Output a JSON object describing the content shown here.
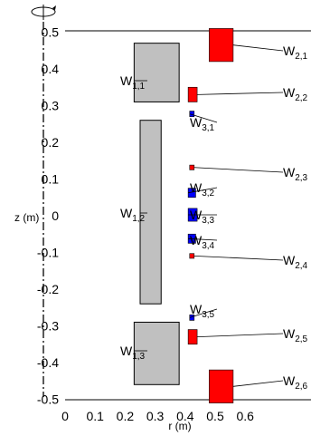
{
  "axes": {
    "x_label": "r (m)",
    "y_label": "z (m)",
    "x_ticks": [
      {
        "value": 0,
        "label": "0"
      },
      {
        "value": 0.1,
        "label": "0.1"
      },
      {
        "value": 0.2,
        "label": "0.2"
      },
      {
        "value": 0.3,
        "label": "0.3"
      },
      {
        "value": 0.4,
        "label": "0.4"
      },
      {
        "value": 0.5,
        "label": "0.5"
      },
      {
        "value": 0.6,
        "label": "0.6"
      }
    ],
    "y_ticks": [
      {
        "value": 0.5,
        "label": "0.5"
      },
      {
        "value": 0.4,
        "label": "0.4"
      },
      {
        "value": 0.3,
        "label": "0.3"
      },
      {
        "value": 0.2,
        "label": "0.2"
      },
      {
        "value": 0.1,
        "label": "0.1"
      },
      {
        "value": 0,
        "label": "0"
      },
      {
        "value": -0.1,
        "label": "-0.1"
      },
      {
        "value": -0.2,
        "label": "-0.2"
      },
      {
        "value": -0.3,
        "label": "-0.3"
      },
      {
        "value": -0.4,
        "label": "-0.4"
      },
      {
        "value": -0.5,
        "label": "-0.5"
      }
    ],
    "x_range": [
      0,
      0.63
    ],
    "y_range": [
      -0.5,
      0.52
    ]
  },
  "colors": {
    "gray_coil": "#c0c0c0",
    "red_coil": "#ff0000",
    "blue_coil": "#0000ff",
    "outline": "#000000"
  },
  "coils": [
    {
      "id": "w11",
      "main": "W",
      "sub": "1,1",
      "color": "gray",
      "r": [
        0.23,
        0.38
      ],
      "z": [
        0.31,
        0.47
      ]
    },
    {
      "id": "w12",
      "main": "W",
      "sub": "1,2",
      "color": "gray",
      "r": [
        0.25,
        0.32
      ],
      "z": [
        -0.24,
        0.26
      ]
    },
    {
      "id": "w13",
      "main": "W",
      "sub": "1,3",
      "color": "gray",
      "r": [
        0.23,
        0.38
      ],
      "z": [
        -0.46,
        -0.29
      ]
    },
    {
      "id": "w21",
      "main": "W",
      "sub": "2,1",
      "color": "red",
      "r": [
        0.48,
        0.56
      ],
      "z": [
        0.42,
        0.51
      ]
    },
    {
      "id": "w22",
      "main": "W",
      "sub": "2,2",
      "color": "red",
      "r": [
        0.41,
        0.44
      ],
      "z": [
        0.31,
        0.35
      ]
    },
    {
      "id": "w23",
      "main": "W",
      "sub": "2,3",
      "color": "red",
      "r": [
        0.415,
        0.43
      ],
      "z": [
        0.125,
        0.138
      ]
    },
    {
      "id": "w24",
      "main": "W",
      "sub": "2,4",
      "color": "red",
      "r": [
        0.415,
        0.43
      ],
      "z": [
        -0.116,
        -0.103
      ]
    },
    {
      "id": "w25",
      "main": "W",
      "sub": "2,5",
      "color": "red",
      "r": [
        0.41,
        0.44
      ],
      "z": [
        -0.35,
        -0.31
      ]
    },
    {
      "id": "w26",
      "main": "W",
      "sub": "2,6",
      "color": "red",
      "r": [
        0.48,
        0.56
      ],
      "z": [
        -0.51,
        -0.42
      ]
    },
    {
      "id": "w31",
      "main": "W",
      "sub": "3,1",
      "color": "blue",
      "r": [
        0.415,
        0.43
      ],
      "z": [
        0.27,
        0.285
      ]
    },
    {
      "id": "w32",
      "main": "W",
      "sub": "3,2",
      "color": "blue",
      "r": [
        0.41,
        0.435
      ],
      "z": [
        0.05,
        0.075
      ]
    },
    {
      "id": "w33",
      "main": "W",
      "sub": "3,3",
      "color": "blue",
      "r": [
        0.41,
        0.44
      ],
      "z": [
        -0.015,
        0.02
      ]
    },
    {
      "id": "w34",
      "main": "W",
      "sub": "3,4",
      "color": "blue",
      "r": [
        0.41,
        0.435
      ],
      "z": [
        -0.075,
        -0.05
      ]
    },
    {
      "id": "w35",
      "main": "W",
      "sub": "3,5",
      "color": "blue",
      "r": [
        0.415,
        0.43
      ],
      "z": [
        -0.285,
        -0.27
      ]
    }
  ]
}
